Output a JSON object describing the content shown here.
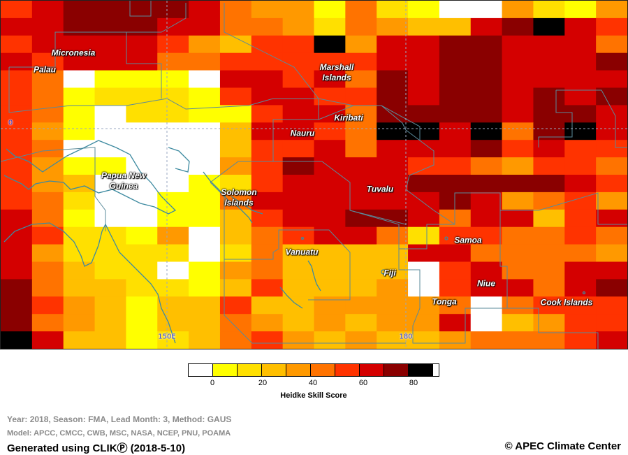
{
  "map": {
    "color_scale": [
      "#ffffff",
      "#ffff00",
      "#ffe000",
      "#ffbf00",
      "#ff9900",
      "#ff7300",
      "#ff3300",
      "#d40000",
      "#8a0000",
      "#000000"
    ],
    "grid": [
      "67888875441521004214",
      "77888775542543378976",
      "67777643669477887775",
      "76777556666677887778",
      "65011107767587887777",
      "65122216776687887878",
      "65102211677588887887",
      "64100003776599795897",
      "65000003667577786766",
      "64110004687776654665",
      "64300012677778888876",
      "65200115777777874564",
      "75100113677887577367",
      "76221403567752665565",
      "74222202533337755554",
      "75322014533330675577",
      "85332213633340677578",
      "86431336334444505666",
      "85431335434344703466",
      "97331235643433455567"
    ],
    "places": [
      {
        "name": "Micronesia"
      },
      {
        "name": "Palau"
      },
      {
        "name": "Marshall\nIslands"
      },
      {
        "name": "Kiribati"
      },
      {
        "name": "Nauru"
      },
      {
        "name": "Papua New\nGuinea"
      },
      {
        "name": "Solomon\nIslands"
      },
      {
        "name": "Tuvalu"
      },
      {
        "name": "Vanuatu"
      },
      {
        "name": "Fiji"
      },
      {
        "name": "Samoa"
      },
      {
        "name": "Niue"
      },
      {
        "name": "Tonga"
      },
      {
        "name": "Cook Islands"
      }
    ],
    "coord_labels": {
      "equator": "0",
      "lon_150e": "150E",
      "lon_180": "180"
    }
  },
  "legend": {
    "colors": [
      "#ffffff",
      "#ffff00",
      "#ffe000",
      "#ffbf00",
      "#ff9900",
      "#ff7300",
      "#ff3300",
      "#d40000",
      "#8a0000",
      "#000000"
    ],
    "ticks": [
      "0",
      "20",
      "40",
      "60",
      "80"
    ],
    "title": "Heidke Skill Score"
  },
  "info": {
    "line1": "Year: 2018, Season: FMA, Lead Month: 3, Method: GAUS",
    "line2": "Model: APCC, CMCC, CWB, MSC, NASA, NCEP, PNU, POAMA"
  },
  "footer": {
    "generated": "Generated using CLIKⓅ (2018-5-10)",
    "copyright": "© APEC Climate Center"
  }
}
